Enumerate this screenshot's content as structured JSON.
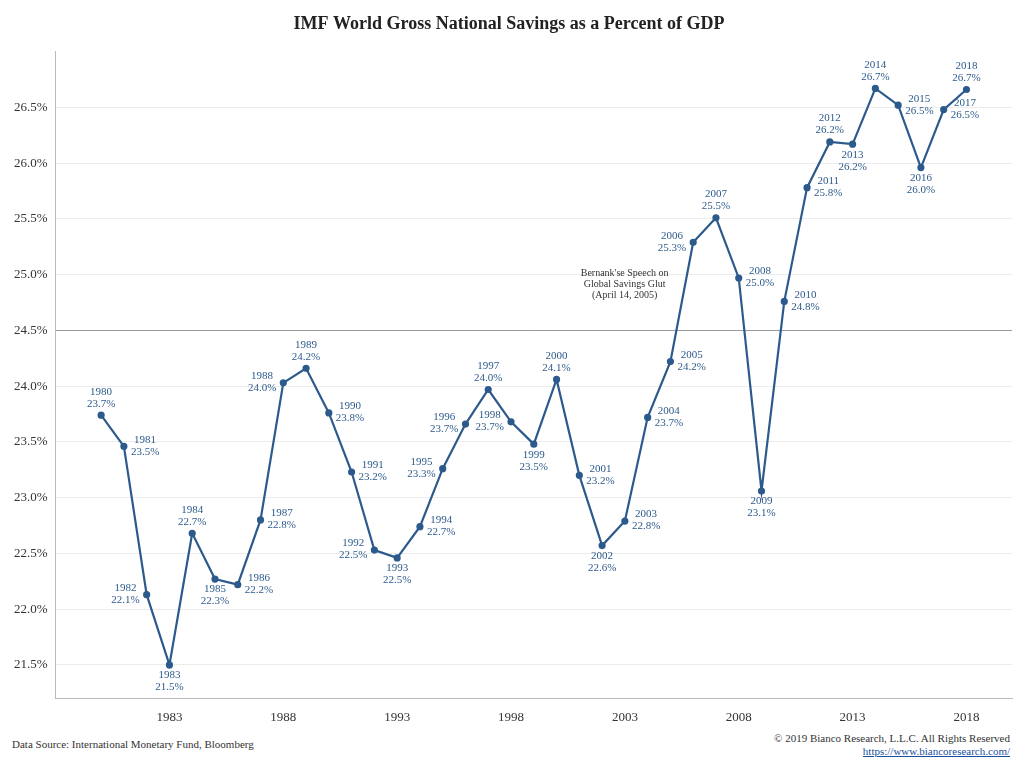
{
  "chart_data": {
    "type": "line",
    "title": "IMF World Gross National Savings as a Percent of GDP",
    "x": [
      1980,
      1981,
      1982,
      1983,
      1984,
      1985,
      1986,
      1987,
      1988,
      1989,
      1990,
      1991,
      1992,
      1993,
      1994,
      1995,
      1996,
      1997,
      1998,
      1999,
      2000,
      2001,
      2002,
      2003,
      2004,
      2005,
      2006,
      2007,
      2008,
      2009,
      2010,
      2011,
      2012,
      2013,
      2014,
      2015,
      2016,
      2017,
      2018
    ],
    "values": [
      23.74,
      23.46,
      22.13,
      21.5,
      22.68,
      22.27,
      22.22,
      22.8,
      24.03,
      24.16,
      23.76,
      23.23,
      22.53,
      22.46,
      22.74,
      23.26,
      23.66,
      23.97,
      23.68,
      23.48,
      24.06,
      23.2,
      22.57,
      22.79,
      23.72,
      24.22,
      25.29,
      25.51,
      24.97,
      23.06,
      24.76,
      25.78,
      26.19,
      26.17,
      26.67,
      26.52,
      25.96,
      26.48,
      26.66
    ],
    "value_labels": [
      "23.7%",
      "23.5%",
      "22.1%",
      "21.5%",
      "22.7%",
      "22.3%",
      "22.2%",
      "22.8%",
      "24.0%",
      "24.2%",
      "23.8%",
      "23.2%",
      "22.5%",
      "22.5%",
      "22.7%",
      "23.3%",
      "23.7%",
      "24.0%",
      "23.7%",
      "23.5%",
      "24.1%",
      "23.2%",
      "22.6%",
      "22.8%",
      "23.7%",
      "24.2%",
      "25.3%",
      "25.5%",
      "25.0%",
      "23.1%",
      "24.8%",
      "25.8%",
      "26.2%",
      "26.2%",
      "26.7%",
      "26.5%",
      "26.0%",
      "26.5%",
      "26.7%"
    ],
    "color": "#2d5a8c",
    "marker": "circle",
    "line_style": "solid",
    "data_labels": true,
    "xlim": [
      1978,
      2020
    ],
    "xticks": [
      1983,
      1988,
      1993,
      1998,
      2003,
      2008,
      2013,
      2018
    ],
    "ylim": [
      21.2,
      27.0
    ],
    "yticks": [
      {
        "value": 21.5,
        "label": "21.5%"
      },
      {
        "value": 22.0,
        "label": "22.0%"
      },
      {
        "value": 22.5,
        "label": "22.5%"
      },
      {
        "value": 23.0,
        "label": "23.0%"
      },
      {
        "value": 23.5,
        "label": "23.5%"
      },
      {
        "value": 24.0,
        "label": "24.0%"
      },
      {
        "value": 24.5,
        "label": "24.5%"
      },
      {
        "value": 25.0,
        "label": "25.0%"
      },
      {
        "value": 25.5,
        "label": "25.5%"
      },
      {
        "value": 26.0,
        "label": "26.0%"
      },
      {
        "value": 26.5,
        "label": "26.5%"
      }
    ],
    "grid": true,
    "reference_line": 24.5,
    "annotations": [
      {
        "text": [
          "Bernank'se Speech on",
          "Global Savings Glut",
          "(April 14, 2005)"
        ]
      }
    ]
  },
  "footer": {
    "source": "Data Source: International Monetary Fund, Bloomberg",
    "copyright": "© 2019 Bianco Research, L.L.C. All Rights Reserved",
    "url": "https://www.biancoresearch.com/"
  }
}
